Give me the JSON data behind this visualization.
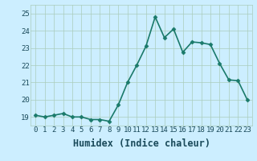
{
  "x": [
    0,
    1,
    2,
    3,
    4,
    5,
    6,
    7,
    8,
    9,
    10,
    11,
    12,
    13,
    14,
    15,
    16,
    17,
    18,
    19,
    20,
    21,
    22,
    23
  ],
  "y": [
    19.1,
    19.0,
    19.1,
    19.2,
    19.0,
    19.0,
    18.85,
    18.85,
    18.75,
    19.7,
    21.0,
    22.0,
    23.1,
    24.8,
    23.6,
    24.1,
    22.75,
    23.35,
    23.3,
    23.2,
    22.1,
    21.15,
    21.1,
    20.0
  ],
  "line_color": "#1a7a6a",
  "marker": "D",
  "marker_size": 2.5,
  "bg_color": "#cceeff",
  "grid_color": "#aaccbb",
  "xlabel": "Humidex (Indice chaleur)",
  "xlim": [
    -0.5,
    23.5
  ],
  "ylim": [
    18.5,
    25.5
  ],
  "yticks": [
    19,
    20,
    21,
    22,
    23,
    24,
    25
  ],
  "xticks": [
    0,
    1,
    2,
    3,
    4,
    5,
    6,
    7,
    8,
    9,
    10,
    11,
    12,
    13,
    14,
    15,
    16,
    17,
    18,
    19,
    20,
    21,
    22,
    23
  ],
  "font_color": "#1a4a5a",
  "tick_fontsize": 6.5,
  "xlabel_fontsize": 8.5,
  "line_width": 1.2
}
